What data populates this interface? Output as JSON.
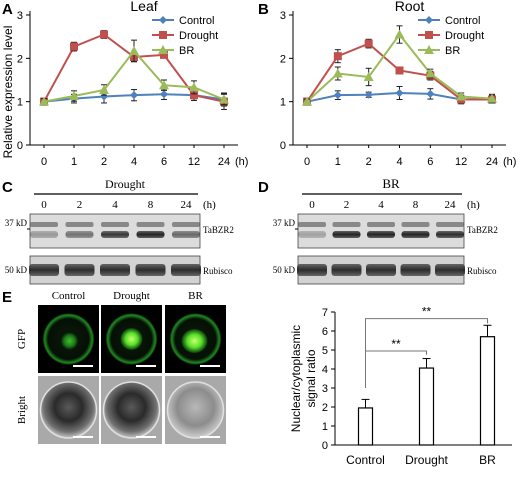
{
  "panels": {
    "A": {
      "letter": "A",
      "chart_data": {
        "type": "line",
        "title": "Leaf",
        "ylabel": "Relative expression level",
        "xlabel": "",
        "x_unit": "(h)",
        "categories": [
          "0",
          "1",
          "2",
          "4",
          "6",
          "12",
          "24"
        ],
        "ylim": [
          0,
          3
        ],
        "yticks": [
          0,
          1,
          2,
          3
        ],
        "legend_position": "top-right",
        "series": [
          {
            "name": "Control",
            "color": "#4f81bd",
            "marker": "diamond",
            "values": [
              1.0,
              1.07,
              1.12,
              1.15,
              1.17,
              1.15,
              1.05
            ],
            "errors": [
              0.08,
              0.1,
              0.15,
              0.13,
              0.12,
              0.12,
              0.15
            ]
          },
          {
            "name": "Drought",
            "color": "#c0504d",
            "marker": "square",
            "values": [
              1.0,
              2.27,
              2.55,
              2.03,
              2.08,
              1.15,
              1.0
            ],
            "errors": [
              0.07,
              0.1,
              0.09,
              0.1,
              0.05,
              0.12,
              0.18
            ]
          },
          {
            "name": "BR",
            "color": "#9bbb59",
            "marker": "triangle",
            "values": [
              1.0,
              1.13,
              1.27,
              2.17,
              1.38,
              1.33,
              1.05
            ],
            "errors": [
              0.07,
              0.12,
              0.12,
              0.25,
              0.12,
              0.15,
              0.12
            ]
          }
        ]
      }
    },
    "B": {
      "letter": "B",
      "chart_data": {
        "type": "line",
        "title": "Root",
        "ylabel": "",
        "xlabel": "",
        "x_unit": "(h)",
        "categories": [
          "0",
          "1",
          "2",
          "4",
          "6",
          "12",
          "24"
        ],
        "ylim": [
          0,
          3
        ],
        "yticks": [
          0,
          1,
          2,
          3
        ],
        "legend_position": "top-right",
        "series": [
          {
            "name": "Control",
            "color": "#4f81bd",
            "marker": "diamond",
            "values": [
              1.0,
              1.15,
              1.16,
              1.2,
              1.18,
              1.05,
              1.07
            ],
            "errors": [
              0.08,
              0.1,
              0.06,
              0.15,
              0.12,
              0.1,
              0.08
            ]
          },
          {
            "name": "Drought",
            "color": "#c0504d",
            "marker": "square",
            "values": [
              1.0,
              2.05,
              2.34,
              1.72,
              1.6,
              1.05,
              1.05
            ],
            "errors": [
              0.07,
              0.15,
              0.1,
              0.08,
              0.1,
              0.08,
              0.08
            ]
          },
          {
            "name": "BR",
            "color": "#9bbb59",
            "marker": "triangle",
            "values": [
              1.0,
              1.65,
              1.57,
              2.55,
              1.65,
              1.12,
              1.07
            ],
            "errors": [
              0.06,
              0.15,
              0.2,
              0.2,
              0.1,
              0.08,
              0.1
            ]
          }
        ]
      }
    },
    "C": {
      "letter": "C",
      "treatment": "Drought",
      "time_labels": [
        "0",
        "2",
        "4",
        "8",
        "24"
      ],
      "unit": "(h)",
      "marker_top": "37 kD",
      "marker_bottom": "50 kD",
      "band_top": "TaBZR2",
      "band_bottom": "Rubisco"
    },
    "D": {
      "letter": "D",
      "treatment": "BR",
      "time_labels": [
        "0",
        "2",
        "4",
        "8",
        "24"
      ],
      "unit": "(h)",
      "marker_top": "37 kD",
      "marker_bottom": "50 kD",
      "band_top": "TaBZR2",
      "band_bottom": "Rubisco"
    },
    "E": {
      "letter": "E",
      "columns": [
        "Control",
        "Drought",
        "BR"
      ],
      "rows": [
        "GFP",
        "Bright"
      ],
      "chart_data": {
        "type": "bar",
        "categories": [
          "Control",
          "Drought",
          "BR"
        ],
        "values": [
          1.95,
          4.05,
          5.7
        ],
        "errors": [
          0.45,
          0.5,
          0.6
        ],
        "ylabel": "Nuclear/cytoplasmic signal ratio",
        "ylabel_lines": [
          "Nuclear/cytoplasmic",
          "signal ratio"
        ],
        "ylim": [
          0,
          7
        ],
        "yticks": [
          0,
          1,
          2,
          3,
          4,
          5,
          6,
          7
        ],
        "significance": [
          {
            "from": "Control",
            "to": "Drought",
            "label": "**"
          },
          {
            "from": "Control",
            "to": "BR",
            "label": "**"
          }
        ]
      }
    }
  }
}
